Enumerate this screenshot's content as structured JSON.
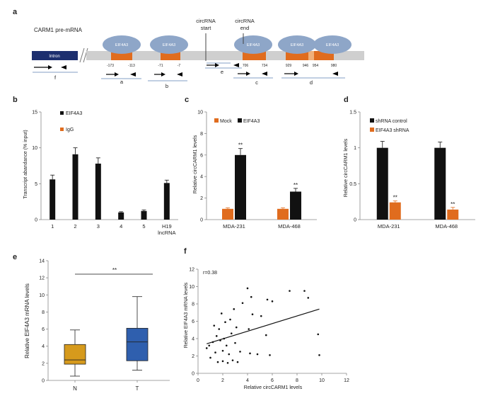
{
  "colors": {
    "black": "#111111",
    "orange": "#e06c1e",
    "ellipse": "#8ea6c8",
    "bar_gray": "#cfcfcf",
    "intron": "#1d2f6f",
    "box_n": "#d69a1c",
    "box_t": "#2f5fae"
  },
  "panel_a": {
    "letter": "a",
    "title": "CARM1 pre-mRNA",
    "intron_label": "Intron",
    "circ_start": [
      "circRNA",
      "start"
    ],
    "circ_end": [
      "circRNA",
      "end"
    ],
    "eif_label": "EIF4A3",
    "positions": [
      "-173",
      "-113",
      "-71",
      "-7",
      "706",
      "734",
      "929",
      "946",
      "954",
      "980"
    ],
    "primer_labels": [
      "f",
      "a",
      "b",
      "e",
      "c",
      "d"
    ]
  },
  "panel_b": {
    "letter": "b",
    "ylabel": "Transcript abandance (% input)",
    "legend": [
      "EIF4A3",
      "IgG"
    ],
    "chart_data": {
      "type": "bar",
      "categories": [
        "1",
        "2",
        "3",
        "4",
        "5",
        "H19 lncRNA"
      ],
      "series": [
        {
          "name": "EIF4A3",
          "values": [
            5.6,
            9.1,
            7.8,
            1.0,
            1.2,
            5.1
          ],
          "errors": [
            0.6,
            0.9,
            0.8,
            0.1,
            0.15,
            0.4
          ]
        }
      ],
      "ylim": [
        0,
        15
      ],
      "yticks": [
        "0",
        "5",
        "10",
        "15"
      ]
    }
  },
  "panel_c": {
    "letter": "c",
    "ylabel": "Relative circCARM1 levels",
    "legend": [
      "Mock",
      "EIF4A3"
    ],
    "chart_data": {
      "type": "bar",
      "categories": [
        "MDA-231",
        "MDA-468"
      ],
      "series": [
        {
          "name": "Mock",
          "values": [
            1.0,
            1.0
          ],
          "errors": [
            0.1,
            0.1
          ]
        },
        {
          "name": "EIF4A3",
          "values": [
            6.0,
            2.6
          ],
          "errors": [
            0.6,
            0.3
          ]
        }
      ],
      "ylim": [
        0,
        10
      ],
      "yticks": [
        "0",
        "2",
        "4",
        "6",
        "8",
        "10"
      ],
      "significance": [
        "**",
        "**"
      ]
    }
  },
  "panel_d": {
    "letter": "d",
    "ylabel": "Relative circCARM1 levels",
    "legend": [
      "shRNA control",
      "EIF4A3 shRNA"
    ],
    "chart_data": {
      "type": "bar",
      "categories": [
        "MDA-231",
        "MDA-468"
      ],
      "series": [
        {
          "name": "shRNA control",
          "values": [
            1.0,
            1.0
          ],
          "errors": [
            0.09,
            0.08
          ]
        },
        {
          "name": "EIF4A3 shRNA",
          "values": [
            0.24,
            0.14
          ],
          "errors": [
            0.02,
            0.03
          ]
        }
      ],
      "ylim": [
        0,
        1.5
      ],
      "yticks": [
        "0",
        "0.5",
        "1",
        "1.5"
      ],
      "significance": [
        "**",
        "**"
      ]
    }
  },
  "panel_e": {
    "letter": "e",
    "ylabel": "Relative EIF4A3 mRNA levels",
    "significance": "**",
    "chart_data": {
      "type": "box",
      "categories": [
        "N",
        "T"
      ],
      "boxes": [
        {
          "min": 0.5,
          "q1": 1.9,
          "median": 2.4,
          "q3": 4.2,
          "max": 5.9
        },
        {
          "min": 1.2,
          "q1": 2.3,
          "median": 4.5,
          "q3": 6.1,
          "max": 9.8
        }
      ],
      "ylim": [
        0,
        14
      ],
      "yticks": [
        "0",
        "2",
        "4",
        "6",
        "8",
        "10",
        "12",
        "14"
      ]
    }
  },
  "panel_f": {
    "letter": "f",
    "xlabel": "Relative circCARM1 levels",
    "ylabel": "Relative EIF4A3 mRNA levels",
    "annotation": "r=0.38",
    "chart_data": {
      "type": "scatter",
      "xlim": [
        0,
        12
      ],
      "ylim": [
        0,
        12
      ],
      "xticks": [
        "0",
        "2",
        "4",
        "6",
        "8",
        "10",
        "12"
      ],
      "yticks": [
        "0",
        "2",
        "4",
        "6",
        "8",
        "10",
        "12"
      ],
      "points": [
        [
          0.7,
          2.9
        ],
        [
          0.9,
          3.2
        ],
        [
          1.0,
          1.8
        ],
        [
          1.2,
          3.6
        ],
        [
          1.3,
          5.5
        ],
        [
          1.4,
          2.4
        ],
        [
          1.5,
          4.3
        ],
        [
          1.6,
          1.3
        ],
        [
          1.7,
          5.1
        ],
        [
          1.8,
          3.8
        ],
        [
          1.9,
          6.9
        ],
        [
          2.0,
          2.6
        ],
        [
          2.0,
          1.4
        ],
        [
          2.1,
          4.0
        ],
        [
          2.2,
          5.9
        ],
        [
          2.3,
          3.2
        ],
        [
          2.4,
          1.2
        ],
        [
          2.5,
          2.2
        ],
        [
          2.6,
          6.2
        ],
        [
          2.7,
          4.6
        ],
        [
          2.8,
          1.5
        ],
        [
          2.9,
          7.4
        ],
        [
          3.0,
          3.5
        ],
        [
          3.1,
          5.3
        ],
        [
          3.2,
          1.3
        ],
        [
          3.4,
          2.5
        ],
        [
          3.6,
          8.1
        ],
        [
          4.0,
          9.8
        ],
        [
          4.1,
          5.1
        ],
        [
          4.2,
          2.3
        ],
        [
          4.3,
          8.8
        ],
        [
          4.4,
          6.8
        ],
        [
          4.8,
          2.2
        ],
        [
          5.1,
          6.6
        ],
        [
          5.5,
          4.4
        ],
        [
          5.6,
          8.5
        ],
        [
          5.8,
          2.1
        ],
        [
          6.0,
          8.3
        ],
        [
          7.4,
          9.5
        ],
        [
          8.6,
          9.5
        ],
        [
          8.9,
          8.7
        ],
        [
          9.7,
          4.5
        ],
        [
          9.8,
          2.1
        ]
      ],
      "trend": [
        [
          0.7,
          3.4
        ],
        [
          9.8,
          7.4
        ]
      ]
    }
  }
}
